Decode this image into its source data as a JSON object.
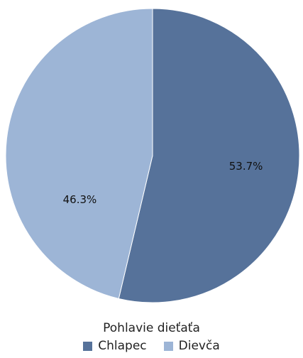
{
  "chart_data": {
    "type": "pie",
    "title": "",
    "legend_title": "Pohlavie dieťaťa",
    "legend_position": "bottom",
    "categories": [
      "Chlapec",
      "Dievča"
    ],
    "values": [
      53.7,
      46.3
    ],
    "labels": [
      "53.7%",
      "46.3%"
    ],
    "colors": [
      "#56729A",
      "#9DB5D6"
    ],
    "start_angle_deg": 0,
    "direction": "clockwise"
  }
}
